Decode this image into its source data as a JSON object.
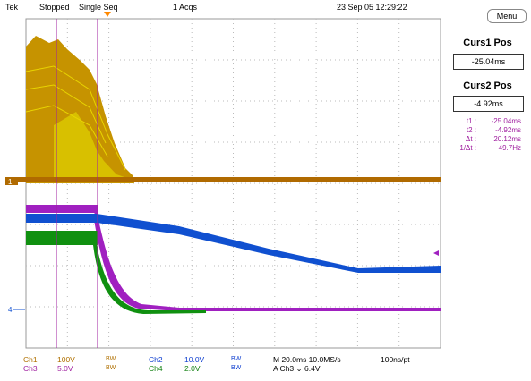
{
  "header": {
    "brand": "Tek",
    "state": "Stopped",
    "mode": "Single Seq",
    "acqs": "1 Acqs",
    "datetime": "23 Sep 05 12:29:22"
  },
  "side": {
    "menu_label": "Menu",
    "curs1_title": "Curs1 Pos",
    "curs1_value": "-25.04ms",
    "curs2_title": "Curs2 Pos",
    "curs2_value": "-4.92ms",
    "readout": [
      {
        "label": "t1 :",
        "value": "-25.04ms"
      },
      {
        "label": "t2 :",
        "value": "-4.92ms"
      },
      {
        "label": "Δt :",
        "value": "20.12ms"
      },
      {
        "label": "1/Δt :",
        "value": "49.7Hz"
      }
    ]
  },
  "markers": {
    "ch1": "1",
    "ch4": "4"
  },
  "footer": {
    "ch1_name": "Ch1",
    "ch1_scale": "100V",
    "ch2_name": "Ch2",
    "ch2_scale": "10.0V",
    "ch3_name": "Ch3",
    "ch3_scale": "5.0V",
    "ch4_name": "Ch4",
    "ch4_scale": "2.0V",
    "bw": "BW",
    "timebase": "M 20.0ms 10.0MS/s",
    "record": "100ns/pt",
    "trigger": "A  Ch3  ⌄  6.4V"
  },
  "colors": {
    "ch1": "#b06a00",
    "ch1_fill": "#d4b800",
    "ch2": "#1050d0",
    "ch3": "#a020c0",
    "ch4": "#109010",
    "cursor": "#a020a0",
    "grid": "#b0b0b0"
  }
}
